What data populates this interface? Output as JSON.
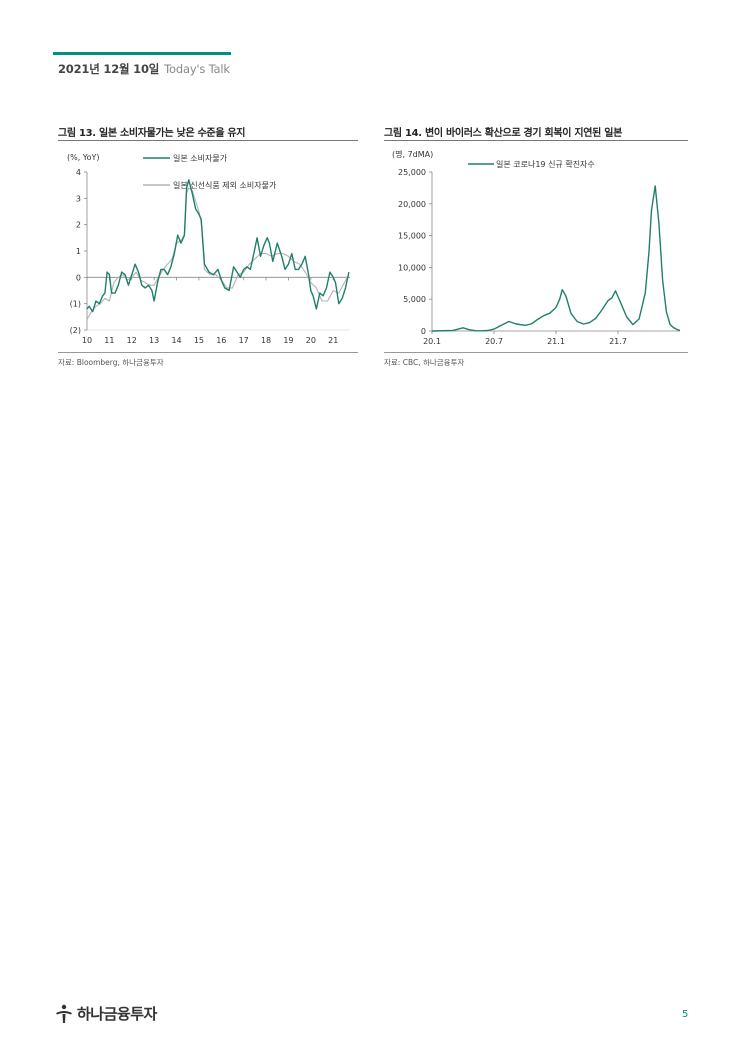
{
  "header": {
    "date": "2021년 12월 10일",
    "brand": "Today's Talk"
  },
  "colors": {
    "accent": "#00917e",
    "series_dark": "#1f7f6e",
    "series_light": "#b3b3b3"
  },
  "figures": [
    {
      "title": "그림 13. 일본 소비자물가는 낮은 수준을 유지",
      "source": "자료: Bloomberg, 하나금융투자"
    },
    {
      "title": "그림 14. 변이 바이러스 확산으로 경기 회복이 지연된 일본",
      "source": "자료: CBC, 하나금융투자"
    }
  ],
  "chart_data": [
    {
      "type": "line",
      "unit_label": "(%, YoY)",
      "ylim": [
        -2,
        4
      ],
      "y_ticks": [
        4,
        3,
        2,
        1,
        0,
        -1,
        -2
      ],
      "y_tick_labels": [
        "4",
        "3",
        "2",
        "1",
        "0",
        "(1)",
        "(2)"
      ],
      "x_ticks": [
        "10",
        "11",
        "12",
        "13",
        "14",
        "15",
        "16",
        "17",
        "18",
        "19",
        "20",
        "21"
      ],
      "x_range": [
        10,
        21.75
      ],
      "series": [
        {
          "name": "일본 소비자물가",
          "x": [
            10.0,
            10.1,
            10.25,
            10.4,
            10.55,
            10.7,
            10.8,
            10.9,
            11.0,
            11.1,
            11.25,
            11.4,
            11.55,
            11.7,
            11.85,
            12.0,
            12.15,
            12.3,
            12.45,
            12.6,
            12.75,
            12.9,
            13.0,
            13.15,
            13.3,
            13.45,
            13.6,
            13.75,
            13.9,
            14.05,
            14.2,
            14.35,
            14.45,
            14.55,
            14.7,
            14.85,
            15.0,
            15.1,
            15.25,
            15.45,
            15.65,
            15.85,
            16.0,
            16.15,
            16.35,
            16.55,
            16.7,
            16.85,
            17.0,
            17.15,
            17.3,
            17.45,
            17.6,
            17.75,
            17.9,
            18.05,
            18.15,
            18.3,
            18.5,
            18.7,
            18.85,
            19.0,
            19.15,
            19.3,
            19.45,
            19.6,
            19.75,
            19.9,
            20.0,
            20.1,
            20.25,
            20.4,
            20.55,
            20.7,
            20.85,
            21.0,
            21.1,
            21.25,
            21.4,
            21.55,
            21.7
          ],
          "values": [
            -1.2,
            -1.1,
            -1.3,
            -0.9,
            -1.0,
            -0.7,
            -0.6,
            0.2,
            0.1,
            -0.6,
            -0.6,
            -0.3,
            0.2,
            0.1,
            -0.3,
            0.1,
            0.5,
            0.2,
            -0.3,
            -0.4,
            -0.3,
            -0.5,
            -0.9,
            -0.2,
            0.3,
            0.3,
            0.1,
            0.4,
            0.9,
            1.6,
            1.3,
            1.6,
            3.4,
            3.7,
            3.2,
            2.6,
            2.4,
            2.2,
            0.5,
            0.2,
            0.1,
            0.3,
            -0.1,
            -0.4,
            -0.5,
            0.4,
            0.2,
            0.0,
            0.3,
            0.4,
            0.3,
            0.9,
            1.5,
            0.8,
            1.2,
            1.5,
            1.3,
            0.6,
            1.3,
            0.8,
            0.3,
            0.5,
            0.9,
            0.3,
            0.3,
            0.5,
            0.8,
            0.1,
            -0.5,
            -0.7,
            -1.2,
            -0.6,
            -0.7,
            -0.4,
            0.2,
            0.0,
            -0.2,
            -1.0,
            -0.8,
            -0.4,
            0.2
          ]
        },
        {
          "name": "일본 신선식품 제외 소비자물가",
          "x": [
            10.0,
            10.2,
            10.4,
            10.6,
            10.8,
            11.0,
            11.2,
            11.4,
            11.6,
            11.8,
            12.0,
            12.2,
            12.4,
            12.6,
            12.8,
            13.0,
            13.2,
            13.4,
            13.6,
            13.8,
            14.0,
            14.2,
            14.35,
            14.45,
            14.55,
            14.7,
            14.85,
            15.0,
            15.1,
            15.25,
            15.5,
            15.75,
            16.0,
            16.25,
            16.5,
            16.75,
            17.0,
            17.25,
            17.5,
            17.75,
            18.0,
            18.25,
            18.5,
            18.75,
            19.0,
            19.25,
            19.5,
            19.75,
            20.0,
            20.25,
            20.5,
            20.75,
            21.0,
            21.25,
            21.5,
            21.7
          ],
          "values": [
            -1.6,
            -1.3,
            -1.1,
            -1.0,
            -0.8,
            -0.9,
            -0.2,
            0.0,
            0.1,
            -0.1,
            0.0,
            0.2,
            -0.1,
            -0.2,
            -0.3,
            -0.3,
            0.0,
            0.3,
            0.5,
            0.7,
            1.3,
            1.4,
            1.6,
            3.2,
            3.4,
            3.3,
            2.9,
            2.5,
            2.1,
            0.3,
            0.1,
            0.1,
            -0.1,
            -0.4,
            -0.4,
            0.1,
            0.2,
            0.5,
            0.7,
            0.9,
            0.9,
            0.8,
            0.9,
            0.9,
            0.8,
            0.6,
            0.5,
            0.2,
            -0.2,
            -0.4,
            -0.9,
            -0.9,
            -0.5,
            -0.6,
            -0.2,
            0.1
          ]
        }
      ]
    },
    {
      "type": "line",
      "unit_label": "(명, 7dMA)",
      "ylim": [
        0,
        25000
      ],
      "y_ticks": [
        25000,
        20000,
        15000,
        10000,
        5000,
        0
      ],
      "y_tick_labels": [
        "25,000",
        "20,000",
        "15,000",
        "10,000",
        "5,000",
        "0"
      ],
      "x_ticks": [
        "20.1",
        "20.7",
        "21.1",
        "21.7"
      ],
      "x_range": [
        20.0,
        22.0
      ],
      "series": [
        {
          "name": "일본 코로나19 신규 확진자수",
          "x": [
            20.0,
            20.17,
            20.25,
            20.3,
            20.35,
            20.4,
            20.45,
            20.5,
            20.55,
            20.6,
            20.62,
            20.68,
            20.75,
            20.8,
            20.85,
            20.9,
            20.95,
            21.0,
            21.03,
            21.05,
            21.08,
            21.12,
            21.17,
            21.22,
            21.27,
            21.32,
            21.37,
            21.42,
            21.45,
            21.48,
            21.52,
            21.57,
            21.62,
            21.67,
            21.72,
            21.75,
            21.77,
            21.8,
            21.83,
            21.86,
            21.89,
            21.92,
            21.95,
            21.98,
            22.0
          ],
          "values": [
            0,
            100,
            500,
            200,
            50,
            30,
            80,
            300,
            800,
            1300,
            1500,
            1100,
            900,
            1100,
            1800,
            2400,
            2800,
            3700,
            5000,
            6500,
            5500,
            2800,
            1500,
            1100,
            1300,
            2000,
            3300,
            4800,
            5200,
            6300,
            4500,
            2200,
            1000,
            1900,
            6000,
            12500,
            19000,
            22800,
            17000,
            8000,
            3000,
            1000,
            500,
            200,
            100
          ]
        }
      ]
    }
  ],
  "footer": {
    "logo_text": "하나금융투자",
    "page_number": "5"
  }
}
